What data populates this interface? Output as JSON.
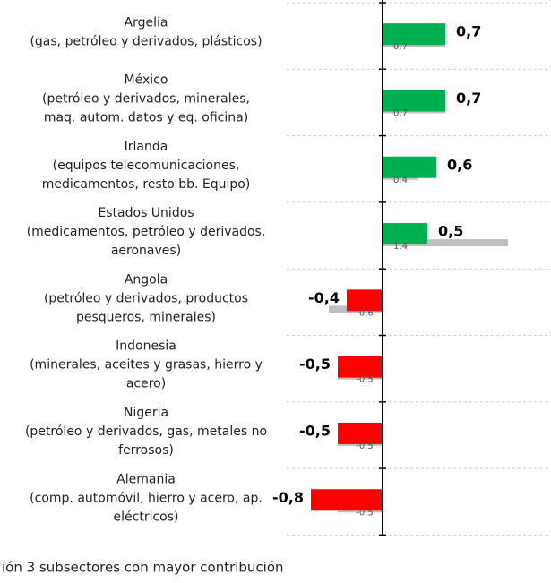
{
  "chart_data": {
    "type": "bar",
    "orientation": "horizontal",
    "categories": [
      [
        "Argelia",
        "(gas, petróleo y derivados, plásticos)"
      ],
      [
        "México",
        "(petróleo y derivados, minerales,",
        "maq. autom. datos y eq. oficina)"
      ],
      [
        "Irlanda",
        "(equipos telecomunicaciones,",
        "medicamentos, resto bb. Equipo)"
      ],
      [
        "Estados Unidos",
        "(medicamentos, petróleo y derivados,",
        "aeronaves)"
      ],
      [
        "Angola",
        "(petróleo y derivados, productos",
        "pesqueros, minerales)"
      ],
      [
        "Indonesia",
        "(minerales, aceites y grasas, hierro y",
        "acero)"
      ],
      [
        "Nigeria",
        "(petróleo y derivados, gas, metales no",
        "ferrosos)"
      ],
      [
        "Alemania",
        "(comp. automóvil, hierro y acero, ap.",
        "eléctricos)"
      ]
    ],
    "series": [
      {
        "color": "#00b050",
        "negative_color": "#ff0000",
        "values": [
          0.7,
          0.7,
          0.6,
          0.5,
          -0.4,
          -0.5,
          -0.5,
          -0.8
        ],
        "value_labels": [
          "0,7",
          "0,7",
          "0,6",
          "0,5",
          "-0,4",
          "-0,5",
          "-0,5",
          "-0,8"
        ]
      },
      {
        "color": "#bfbfbf",
        "values": [
          0.7,
          0.7,
          0.4,
          1.4,
          -0.6,
          -0.5,
          -0.5,
          -0.5
        ],
        "value_labels": [
          "0,7",
          "0,7",
          "0,4",
          "1,4",
          "-0,6",
          "-0,5",
          "-0,5",
          "-0,5"
        ]
      }
    ],
    "xlim": [
      -1,
      1.88
    ],
    "note": "ión 3 subsectores con mayor contribución"
  }
}
